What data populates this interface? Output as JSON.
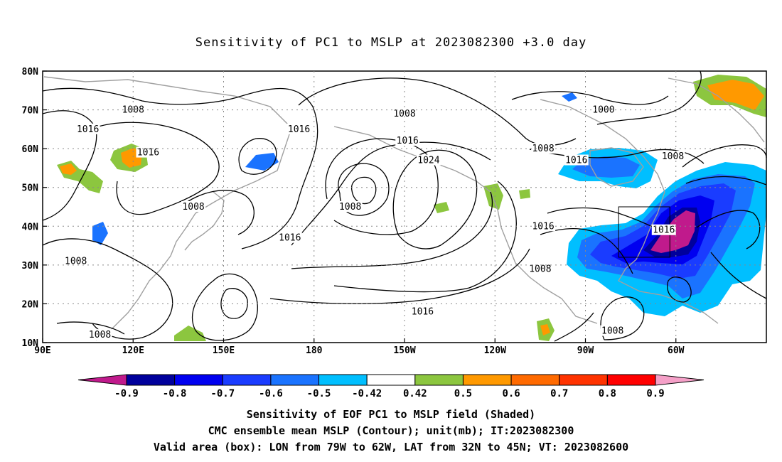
{
  "title": "Sensitivity of PC1 to MSLP at 2023082300 +3.0 day",
  "map": {
    "lon_ticks": [
      "90E",
      "120E",
      "150E",
      "180",
      "150W",
      "120W",
      "90W",
      "60W"
    ],
    "lat_ticks": [
      "80N",
      "70N",
      "60N",
      "50N",
      "40N",
      "30N",
      "20N",
      "10N"
    ],
    "contour_labels": [
      {
        "text": "1008",
        "lon": 120,
        "lat": 70
      },
      {
        "text": "1016",
        "lon": 105,
        "lat": 65
      },
      {
        "text": "1016",
        "lon": 125,
        "lat": 59
      },
      {
        "text": "1008",
        "lon": 140,
        "lat": 45
      },
      {
        "text": "1016",
        "lon": 175,
        "lat": 65
      },
      {
        "text": "1016",
        "lon": 172,
        "lat": 37
      },
      {
        "text": "1008",
        "lon": 192,
        "lat": 45
      },
      {
        "text": "1016",
        "lon": 211,
        "lat": 62
      },
      {
        "text": "1024",
        "lon": 218,
        "lat": 57
      },
      {
        "text": "1008",
        "lon": 210,
        "lat": 69
      },
      {
        "text": "1008",
        "lon": 256,
        "lat": 60
      },
      {
        "text": "1016",
        "lon": 267,
        "lat": 57
      },
      {
        "text": "1000",
        "lon": 276,
        "lat": 70
      },
      {
        "text": "1008",
        "lon": 299,
        "lat": 58
      },
      {
        "text": "1016",
        "lon": 256,
        "lat": 40
      },
      {
        "text": "1008",
        "lon": 255,
        "lat": 29
      },
      {
        "text": "1016",
        "lon": 296,
        "lat": 39
      },
      {
        "text": "1008",
        "lon": 101,
        "lat": 31
      },
      {
        "text": "1008",
        "lon": 109,
        "lat": 12
      },
      {
        "text": "1016",
        "lon": 216,
        "lat": 18
      },
      {
        "text": "1008",
        "lon": 279,
        "lat": 13
      }
    ],
    "valid_box": {
      "lon_min": -79,
      "lon_max": -62,
      "lat_min": 32,
      "lat_max": 45
    }
  },
  "colorbar": {
    "labels": [
      "-0.9",
      "-0.8",
      "-0.7",
      "-0.6",
      "-0.5",
      "-0.42",
      "0.42",
      "0.5",
      "0.6",
      "0.7",
      "0.8",
      "0.9"
    ],
    "colors": {
      "below": "#c01a8c",
      "bins": [
        "#00009c",
        "#0000f0",
        "#1a3cff",
        "#1a73ff",
        "#00bfff",
        "#ffffff",
        "#8cc63f",
        "#ff9900",
        "#ff6a00",
        "#ff3300",
        "#ff0000"
      ],
      "above": "#f5a0c8"
    }
  },
  "captions": {
    "line1": "Sensitivity of EOF PC1 to MSLP field (Shaded)",
    "line2": "CMC ensemble mean MSLP (Contour); unit(mb); IT:2023082300",
    "line3": "Valid area (box): LON from 79W to 62W, LAT from 32N to 45N; VT: 2023082600"
  }
}
